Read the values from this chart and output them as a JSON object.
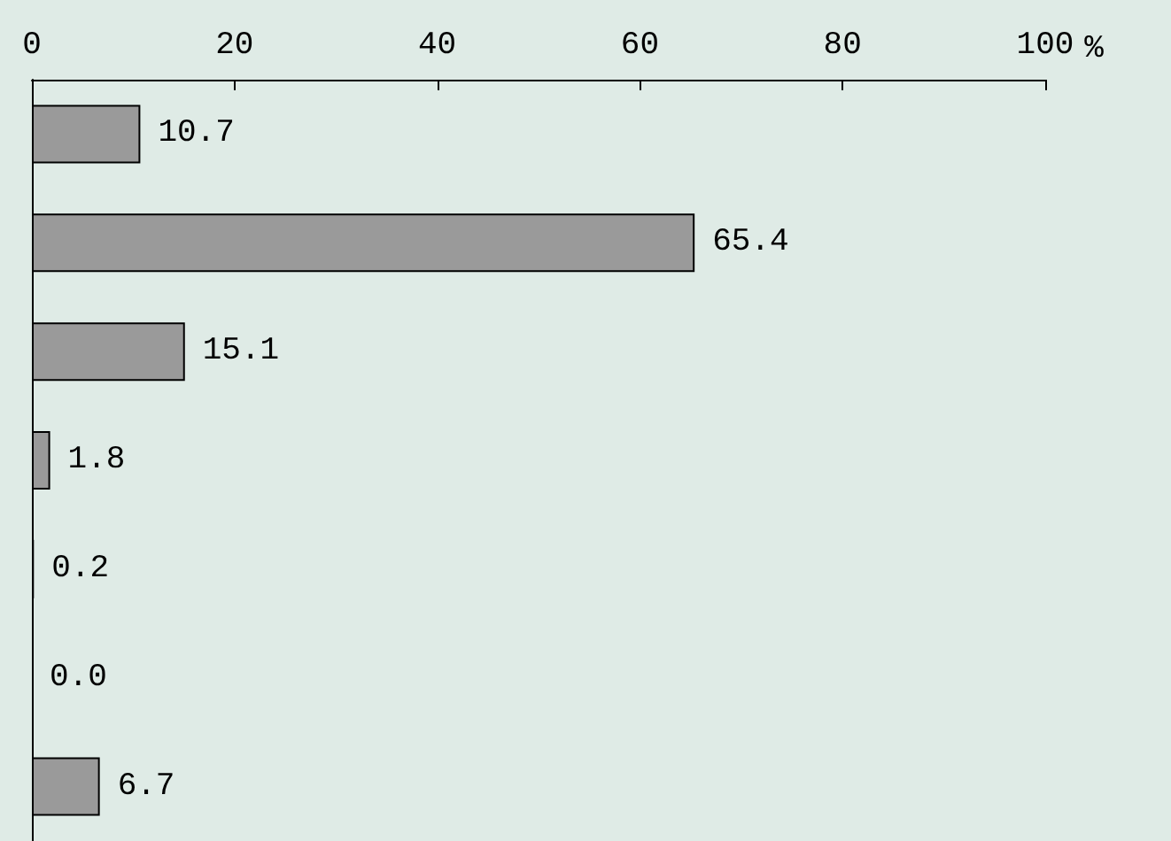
{
  "chart_data": {
    "type": "bar",
    "orientation": "horizontal",
    "xlabel": "%",
    "categories": [
      null,
      null,
      null,
      null,
      null,
      null,
      null
    ],
    "values": [
      10.7,
      65.4,
      15.1,
      1.8,
      0.2,
      0.0,
      6.7
    ],
    "value_labels": [
      "10.7",
      "65.4",
      "15.1",
      "1.8",
      "0.2",
      "0.0",
      "6.7"
    ],
    "color": "#9a9a9a",
    "xlim": [
      0,
      100
    ],
    "xticks": [
      0,
      20,
      40,
      60,
      80,
      100
    ],
    "grid": false
  }
}
